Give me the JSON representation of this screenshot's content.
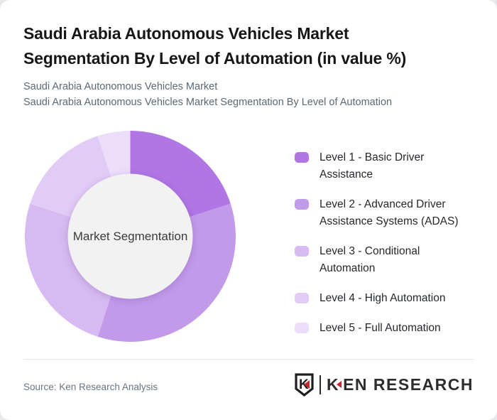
{
  "header": {
    "title": "Saudi Arabia Autonomous Vehicles Market Segmentation By Level of Automation (in value %)",
    "subtitle_lines": [
      "Saudi Arabia Autonomous Vehicles Market",
      "Saudi Arabia Autonomous Vehicles Market Segmentation By Level of Automation"
    ]
  },
  "chart_data": {
    "type": "pie",
    "variant": "donut",
    "title": "Saudi Arabia Autonomous Vehicles Market Segmentation By Level of Automation (in value %)",
    "center_label": "Market Segmentation",
    "labels": [
      "Level 1 - Basic Driver Assistance",
      "Level 2 - Advanced Driver Assistance Systems (ADAS)",
      "Level 3 - Conditional Automation",
      "Level 4 - High Automation",
      "Level 5 - Full Automation"
    ],
    "values": [
      20,
      35,
      25,
      15,
      5
    ],
    "values_unit": "%",
    "colors": [
      "#b076e4",
      "#c29ae9",
      "#d6baf1",
      "#e1ccf6",
      "#ecdefa"
    ],
    "hole_color": "#f2f2f2",
    "start_angle_deg": 0,
    "direction": "clockwise",
    "legend_position": "right"
  },
  "footer": {
    "source": "Source: Ken Research Analysis",
    "logo": {
      "badge_letter": "K",
      "brand_first_letter": "K",
      "brand_rest": "EN RESEARCH",
      "brand_red": "#c9252c",
      "brand_dark": "#2b2b2b"
    }
  }
}
